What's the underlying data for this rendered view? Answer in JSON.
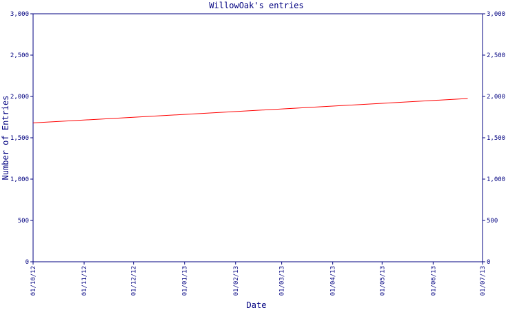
{
  "chart_data": {
    "type": "line",
    "title": "WillowOak's entries",
    "x_label": "Date",
    "y_label": "Number of Entries",
    "xlim": [
      0,
      273
    ],
    "xticks": [
      {
        "value": 0,
        "label": "01/10/12"
      },
      {
        "value": 31,
        "label": "01/11/12"
      },
      {
        "value": 61,
        "label": "01/12/12"
      },
      {
        "value": 92,
        "label": "01/01/13"
      },
      {
        "value": 123,
        "label": "01/02/13"
      },
      {
        "value": 151,
        "label": "01/03/13"
      },
      {
        "value": 182,
        "label": "01/04/13"
      },
      {
        "value": 212,
        "label": "01/05/13"
      },
      {
        "value": 243,
        "label": "01/06/13"
      },
      {
        "value": 273,
        "label": "01/07/13"
      }
    ],
    "ylim": [
      0,
      3000
    ],
    "yticks": [
      0,
      500,
      {
        "value": 1000,
        "label": "1,000"
      },
      {
        "value": 1500,
        "label": "1,500"
      },
      {
        "value": 2000,
        "label": "2,000"
      },
      {
        "value": 2500,
        "label": "2,500"
      },
      {
        "value": 3000,
        "label": "3,000"
      }
    ],
    "y2lim": [
      0,
      3000
    ],
    "y2ticks": [
      0,
      500,
      {
        "value": 1000,
        "label": "1,000"
      },
      {
        "value": 1500,
        "label": "1,500"
      },
      {
        "value": 2000,
        "label": "2,000"
      },
      {
        "value": 2500,
        "label": "2,500"
      },
      {
        "value": 3000,
        "label": "3,000"
      }
    ],
    "grid": false,
    "axis_color": "#000080",
    "series": [
      {
        "name": "entries",
        "color": "#ff0000",
        "x": [
          0,
          264
        ],
        "values": [
          1680,
          1975
        ]
      }
    ]
  }
}
